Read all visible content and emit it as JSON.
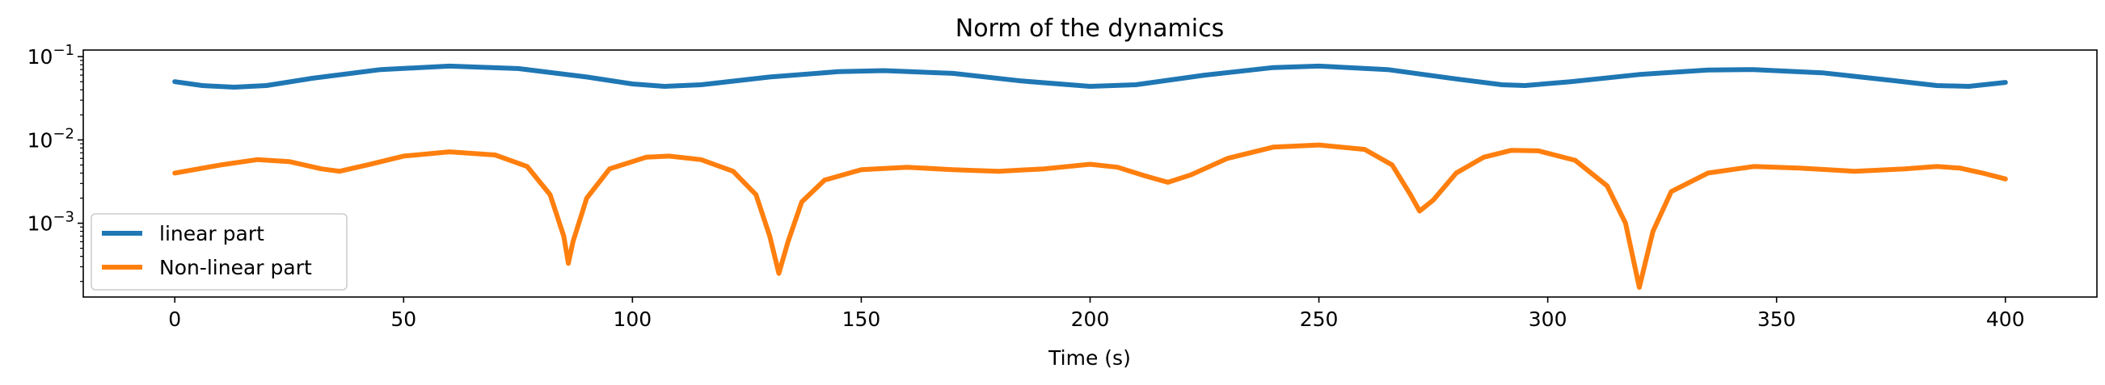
{
  "chart_data": {
    "type": "line",
    "title": "Norm of the dynamics",
    "xlabel": "Time (s)",
    "ylabel": "",
    "xlim": [
      -20,
      420
    ],
    "ylim": [
      0.00013,
      0.12
    ],
    "yscale": "log",
    "x_ticks": [
      0,
      50,
      100,
      150,
      200,
      250,
      300,
      350,
      400
    ],
    "y_ticks": [
      {
        "value": 0.001,
        "base": "10",
        "exp": "−3"
      },
      {
        "value": 0.01,
        "base": "10",
        "exp": "−2"
      },
      {
        "value": 0.1,
        "base": "10",
        "exp": "−1"
      }
    ],
    "grid": false,
    "legend_position": "lower-left",
    "series": [
      {
        "name": "linear part",
        "color": "#1f77b4",
        "points": [
          [
            0,
            0.05
          ],
          [
            6,
            0.045
          ],
          [
            13,
            0.043
          ],
          [
            20,
            0.045
          ],
          [
            30,
            0.055
          ],
          [
            45,
            0.07
          ],
          [
            60,
            0.077
          ],
          [
            75,
            0.072
          ],
          [
            90,
            0.057
          ],
          [
            100,
            0.047
          ],
          [
            107,
            0.044
          ],
          [
            115,
            0.046
          ],
          [
            130,
            0.057
          ],
          [
            145,
            0.066
          ],
          [
            155,
            0.068
          ],
          [
            170,
            0.063
          ],
          [
            185,
            0.051
          ],
          [
            200,
            0.044
          ],
          [
            210,
            0.046
          ],
          [
            225,
            0.06
          ],
          [
            240,
            0.074
          ],
          [
            250,
            0.077
          ],
          [
            265,
            0.07
          ],
          [
            280,
            0.054
          ],
          [
            290,
            0.046
          ],
          [
            295,
            0.045
          ],
          [
            305,
            0.05
          ],
          [
            320,
            0.061
          ],
          [
            335,
            0.069
          ],
          [
            345,
            0.07
          ],
          [
            360,
            0.064
          ],
          [
            375,
            0.052
          ],
          [
            385,
            0.045
          ],
          [
            392,
            0.044
          ],
          [
            400,
            0.049
          ]
        ]
      },
      {
        "name": "Non-linear part",
        "color": "#ff7f0e",
        "points": [
          [
            0,
            0.004
          ],
          [
            10,
            0.005
          ],
          [
            18,
            0.0058
          ],
          [
            25,
            0.0055
          ],
          [
            32,
            0.0045
          ],
          [
            36,
            0.0042
          ],
          [
            42,
            0.005
          ],
          [
            50,
            0.0064
          ],
          [
            60,
            0.0072
          ],
          [
            70,
            0.0066
          ],
          [
            77,
            0.0048
          ],
          [
            82,
            0.0022
          ],
          [
            85,
            0.0007
          ],
          [
            86,
            0.00033
          ],
          [
            87,
            0.0006
          ],
          [
            90,
            0.002
          ],
          [
            95,
            0.0045
          ],
          [
            103,
            0.0062
          ],
          [
            108,
            0.0064
          ],
          [
            115,
            0.0058
          ],
          [
            122,
            0.0042
          ],
          [
            127,
            0.0022
          ],
          [
            130,
            0.0007
          ],
          [
            132,
            0.00025
          ],
          [
            134,
            0.0006
          ],
          [
            137,
            0.0018
          ],
          [
            142,
            0.0033
          ],
          [
            150,
            0.0044
          ],
          [
            160,
            0.0047
          ],
          [
            170,
            0.0044
          ],
          [
            180,
            0.0042
          ],
          [
            190,
            0.0045
          ],
          [
            200,
            0.0051
          ],
          [
            206,
            0.0047
          ],
          [
            212,
            0.0037
          ],
          [
            217,
            0.0031
          ],
          [
            222,
            0.0038
          ],
          [
            230,
            0.006
          ],
          [
            240,
            0.0082
          ],
          [
            250,
            0.0087
          ],
          [
            260,
            0.0077
          ],
          [
            266,
            0.005
          ],
          [
            270,
            0.0022
          ],
          [
            272,
            0.0014
          ],
          [
            275,
            0.0019
          ],
          [
            280,
            0.004
          ],
          [
            286,
            0.0062
          ],
          [
            292,
            0.0075
          ],
          [
            298,
            0.0074
          ],
          [
            306,
            0.0057
          ],
          [
            313,
            0.0028
          ],
          [
            317,
            0.001
          ],
          [
            320,
            0.00017
          ],
          [
            323,
            0.0008
          ],
          [
            327,
            0.0024
          ],
          [
            335,
            0.004
          ],
          [
            345,
            0.0048
          ],
          [
            355,
            0.0046
          ],
          [
            367,
            0.0042
          ],
          [
            378,
            0.0045
          ],
          [
            385,
            0.0048
          ],
          [
            390,
            0.0046
          ],
          [
            395,
            0.004
          ],
          [
            400,
            0.0034
          ]
        ]
      }
    ]
  }
}
